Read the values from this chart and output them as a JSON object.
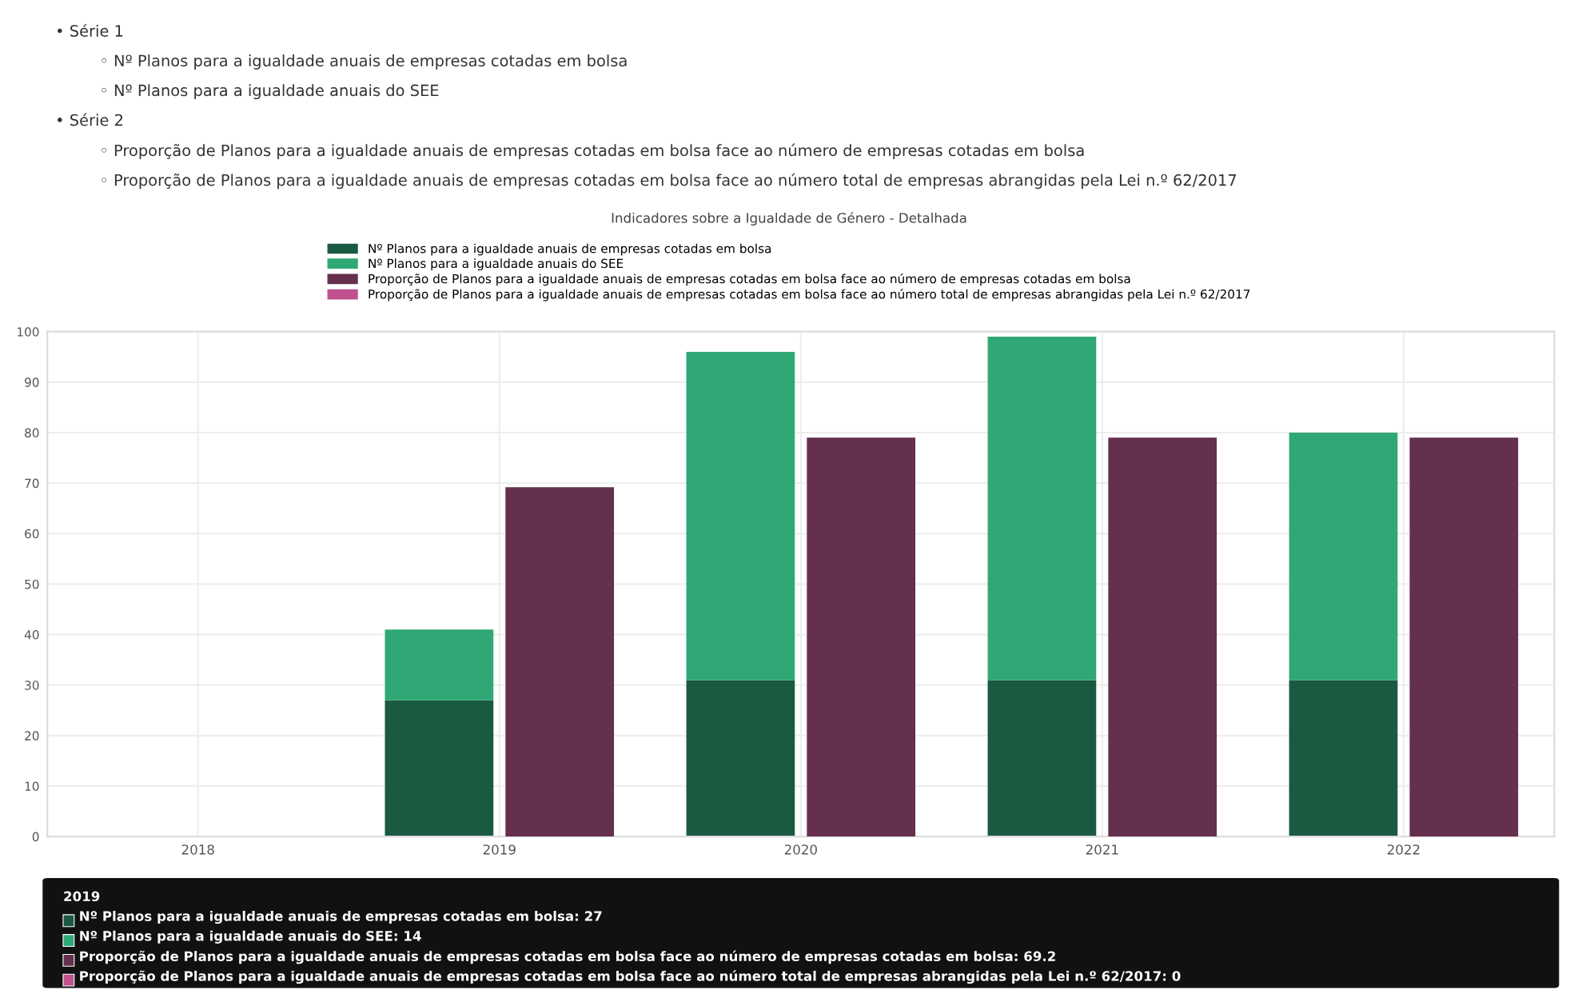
{
  "chart_data": [
    {
      "type": "bar",
      "title": "Indicadores sobre a Igualdade de Género - Detalhada",
      "categories": [
        "2018",
        "2019",
        "2020",
        "2021",
        "2022"
      ],
      "stacked": true,
      "series": [
        {
          "name": "Nº Planos para a igualdade anuais de empresas cotadas em bolsa",
          "color": "#1a5a40",
          "values": [
            null,
            27,
            31,
            31,
            31
          ]
        },
        {
          "name": "Nº Planos para a igualdade anuais do SEE",
          "color": "#2fa876",
          "values": [
            null,
            14,
            65,
            68,
            49
          ]
        }
      ],
      "ylim": [
        0,
        100
      ],
      "yticks": [
        0,
        10,
        20,
        30,
        40,
        50,
        60,
        70,
        80,
        90,
        100
      ],
      "grid": true,
      "legend": "top",
      "annotations": [
        "• Série 1",
        "◦ Nº Planos para a igualdade anuais de empresas cotadas em bolsa",
        "◦ Nº Planos para a igualdade anuais do SEE",
        "• Série 2",
        "◦ Proporção de Planos para a igualdade anuais de empresas cotadas em bolsa face ao número de empresas cotadas em bolsa",
        "◦ Proporção de Planos para a igualdade anuais de empresas cotadas em bolsa face ao número total de empresas abrangidas pela Lei n.º 62/2017",
        "2019",
        "Nº Planos para a igualdade anuais de empresas cotadas em bolsa: 27",
        "Nº Planos para a igualdade anuais do SEE: 14",
        "Proporção de Planos para a igualdade anuais de empresas cotadas em bolsa face ao número de empresas cotadas em bolsa: 69.2",
        "Proporção de Planos para a igualdade anuais de empresas cotadas em bolsa face ao número total de empresas abrangidas pela Lei n.º 62/2017: 0"
      ]
    },
    {
      "type": "bar",
      "categories": [
        "2018",
        "2019",
        "2020",
        "2021",
        "2022"
      ],
      "stacked": true,
      "series": [
        {
          "name": "Proporção de Planos para a igualdade anuais de empresas cotadas em bolsa face ao número de empresas cotadas em bolsa",
          "color": "#652f4e",
          "values": [
            null,
            69.2,
            79,
            79,
            79
          ]
        },
        {
          "name": "Proporção de Planos para a igualdade anuais de empresas cotadas em bolsa face ao número total de empresas abrangidas pela Lei n.º 62/2017",
          "color": "#c0508e",
          "values": [
            null,
            0,
            0,
            0,
            0
          ]
        }
      ],
      "ylim": [
        0,
        100
      ],
      "yticks": [
        0,
        10,
        20,
        30,
        40,
        50,
        60,
        70,
        80,
        90,
        100
      ],
      "legend": "top",
      "tick_labels": false
    }
  ]
}
